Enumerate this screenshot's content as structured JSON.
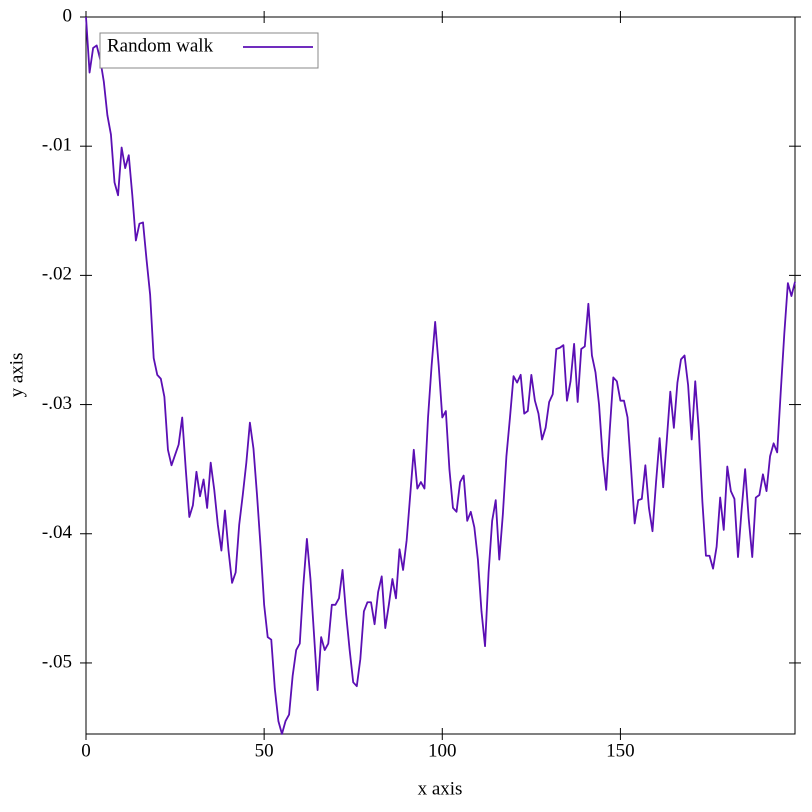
{
  "chart_data": {
    "type": "line",
    "xlabel": "x axis",
    "ylabel": "y axis",
    "x": [
      0,
      1,
      2,
      3,
      4,
      5,
      6,
      7,
      8,
      9,
      10,
      11,
      12,
      13,
      14,
      15,
      16,
      17,
      18,
      19,
      20,
      21,
      22,
      23,
      24,
      25,
      26,
      27,
      28,
      29,
      30,
      31,
      32,
      33,
      34,
      35,
      36,
      37,
      38,
      39,
      40,
      41,
      42,
      43,
      44,
      45,
      46,
      47,
      48,
      49,
      50,
      51,
      52,
      53,
      54,
      55,
      56,
      57,
      58,
      59,
      60,
      61,
      62,
      63,
      64,
      65,
      66,
      67,
      68,
      69,
      70,
      71,
      72,
      73,
      74,
      75,
      76,
      77,
      78,
      79,
      80,
      81,
      82,
      83,
      84,
      85,
      86,
      87,
      88,
      89,
      90,
      91,
      92,
      93,
      94,
      95,
      96,
      97,
      98,
      99,
      100,
      101,
      102,
      103,
      104,
      105,
      106,
      107,
      108,
      109,
      110,
      111,
      112,
      113,
      114,
      115,
      116,
      117,
      118,
      119,
      120,
      121,
      122,
      123,
      124,
      125,
      126,
      127,
      128,
      129,
      130,
      131,
      132,
      133,
      134,
      135,
      136,
      137,
      138,
      139,
      140,
      141,
      142,
      143,
      144,
      145,
      146,
      147,
      148,
      149,
      150,
      151,
      152,
      153,
      154,
      155,
      156,
      157,
      158,
      159,
      160,
      161,
      162,
      163,
      164,
      165,
      166,
      167,
      168,
      169,
      170,
      171,
      172,
      173,
      174,
      175,
      176,
      177,
      178,
      179,
      180,
      181,
      182,
      183,
      184,
      185,
      186,
      187,
      188,
      189,
      190,
      191,
      192,
      193,
      194,
      195,
      196,
      197,
      198,
      199
    ],
    "series": [
      {
        "name": "Random walk",
        "color": "#5b0fb4",
        "values": [
          0,
          -0.0043,
          -0.0024,
          -0.0022,
          -0.0033,
          -0.005,
          -0.0076,
          -0.0091,
          -0.0128,
          -0.0138,
          -0.0101,
          -0.0117,
          -0.0107,
          -0.0138,
          -0.0173,
          -0.016,
          -0.0159,
          -0.0188,
          -0.0215,
          -0.0264,
          -0.0277,
          -0.028,
          -0.0294,
          -0.0335,
          -0.0347,
          -0.0339,
          -0.0331,
          -0.031,
          -0.035,
          -0.0387,
          -0.0378,
          -0.0352,
          -0.0371,
          -0.0358,
          -0.038,
          -0.0345,
          -0.0366,
          -0.0393,
          -0.0413,
          -0.0382,
          -0.0413,
          -0.0438,
          -0.043,
          -0.0393,
          -0.037,
          -0.0345,
          -0.0314,
          -0.0334,
          -0.037,
          -0.041,
          -0.0455,
          -0.048,
          -0.0482,
          -0.052,
          -0.0545,
          -0.0555,
          -0.0545,
          -0.054,
          -0.051,
          -0.049,
          -0.0485,
          -0.044,
          -0.0404,
          -0.0435,
          -0.0478,
          -0.0521,
          -0.048,
          -0.049,
          -0.0485,
          -0.0455,
          -0.0455,
          -0.045,
          -0.0428,
          -0.0462,
          -0.049,
          -0.0515,
          -0.0518,
          -0.0497,
          -0.046,
          -0.0453,
          -0.0453,
          -0.047,
          -0.0445,
          -0.0433,
          -0.0473,
          -0.0455,
          -0.0435,
          -0.045,
          -0.0412,
          -0.0428,
          -0.0405,
          -0.037,
          -0.0335,
          -0.0365,
          -0.036,
          -0.0365,
          -0.031,
          -0.027,
          -0.0236,
          -0.027,
          -0.031,
          -0.0305,
          -0.035,
          -0.038,
          -0.0383,
          -0.036,
          -0.0355,
          -0.039,
          -0.0383,
          -0.0395,
          -0.042,
          -0.046,
          -0.0487,
          -0.043,
          -0.039,
          -0.0374,
          -0.042,
          -0.0385,
          -0.034,
          -0.031,
          -0.0278,
          -0.0283,
          -0.0277,
          -0.0307,
          -0.0305,
          -0.0277,
          -0.0297,
          -0.0307,
          -0.0327,
          -0.0318,
          -0.0298,
          -0.0292,
          -0.0257,
          -0.0256,
          -0.0254,
          -0.0297,
          -0.0282,
          -0.0253,
          -0.0298,
          -0.0257,
          -0.0255,
          -0.0222,
          -0.0262,
          -0.0275,
          -0.03,
          -0.034,
          -0.0366,
          -0.032,
          -0.0279,
          -0.0282,
          -0.0297,
          -0.0297,
          -0.031,
          -0.035,
          -0.0392,
          -0.0374,
          -0.0373,
          -0.0347,
          -0.038,
          -0.0398,
          -0.036,
          -0.0326,
          -0.0364,
          -0.0328,
          -0.029,
          -0.0318,
          -0.0283,
          -0.0265,
          -0.0262,
          -0.0285,
          -0.0327,
          -0.0282,
          -0.032,
          -0.0375,
          -0.0417,
          -0.0417,
          -0.0427,
          -0.041,
          -0.0372,
          -0.0397,
          -0.0348,
          -0.0367,
          -0.0373,
          -0.0418,
          -0.0382,
          -0.035,
          -0.0388,
          -0.0418,
          -0.0372,
          -0.037,
          -0.0354,
          -0.0367,
          -0.034,
          -0.033,
          -0.0337,
          -0.029,
          -0.0245,
          -0.0206,
          -0.0216,
          -0.0205
        ]
      }
    ],
    "xlim": [
      0,
      199
    ],
    "ylim": [
      -0.0555,
      0
    ],
    "xticks": [
      0,
      50,
      100,
      150
    ],
    "yticks": [
      0,
      {
        "value": -0.01,
        "label": "-.01"
      },
      {
        "value": -0.02,
        "label": "-.02"
      },
      {
        "value": -0.03,
        "label": "-.03"
      },
      {
        "value": -0.04,
        "label": "-.04"
      },
      {
        "value": -0.05,
        "label": "-.05"
      }
    ],
    "legend": "upper-left"
  }
}
